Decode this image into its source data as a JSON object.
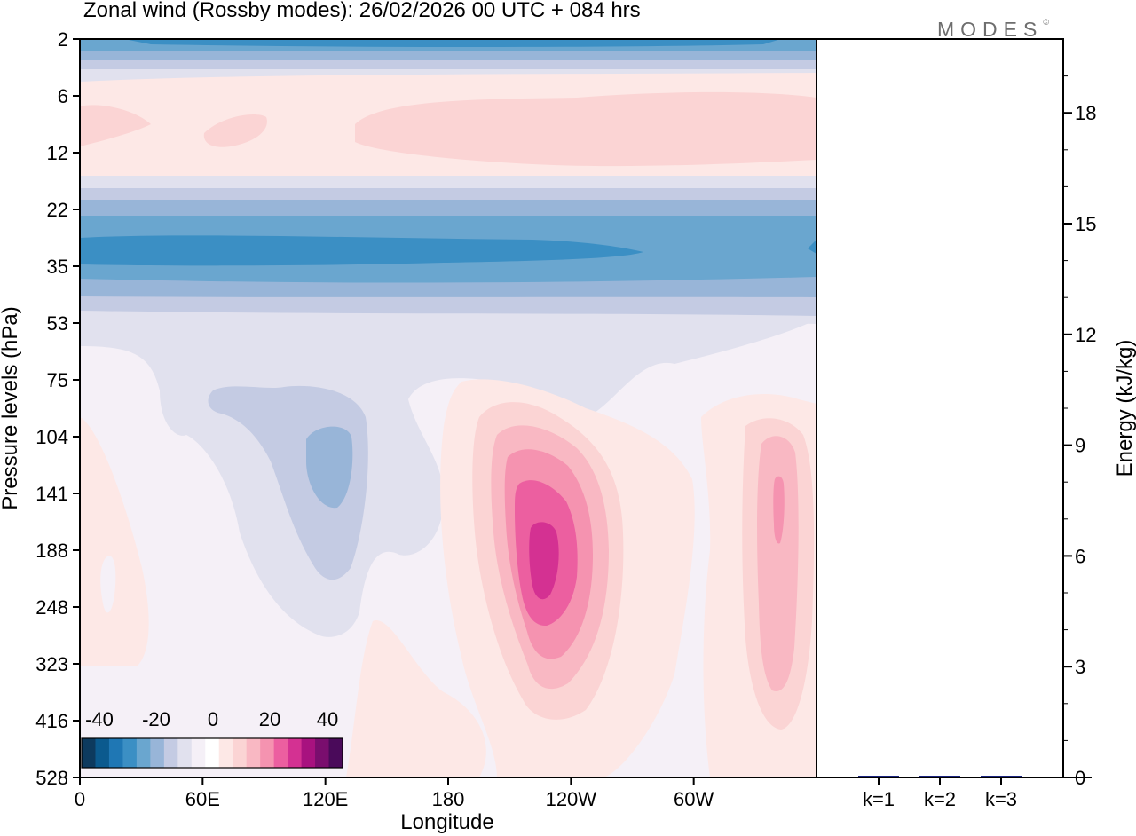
{
  "chart_data": [
    {
      "type": "heatmap",
      "title": "Zonal wind (Rossby modes):  26/02/2026  00 UTC  + 084 hrs",
      "xlabel": "Longitude",
      "ylabel": "Pressure levels (hPa)",
      "x_ticks": [
        "0",
        "60E",
        "120E",
        "180",
        "120W",
        "60W"
      ],
      "x_tick_degrees": [
        0,
        60,
        120,
        180,
        240,
        300
      ],
      "xlim_degrees": [
        0,
        360
      ],
      "y_ticks": [
        "2",
        "6",
        "12",
        "22",
        "35",
        "53",
        "75",
        "104",
        "141",
        "188",
        "248",
        "323",
        "416",
        "528"
      ],
      "colorbar": {
        "tick_labels": [
          "-40",
          "-20",
          "0",
          "20",
          "40"
        ],
        "tick_values": [
          -40,
          -20,
          0,
          20,
          40
        ],
        "range": [
          -50,
          50
        ],
        "colors": [
          "#0d3a5e",
          "#0b5a8e",
          "#1f77b4",
          "#3b8fc4",
          "#6aa6cf",
          "#98b5d8",
          "#c4cbe3",
          "#e1e1ee",
          "#f5f0f7",
          "#ffffff",
          "#fde8e6",
          "#fbd4d4",
          "#f9b8c3",
          "#f593b0",
          "#ec5fa0",
          "#d43192",
          "#a8127f",
          "#7a0e6e",
          "#4a0a5a"
        ]
      },
      "features": [
        {
          "name": "upper-stratosphere-easterlies",
          "levels_hPa": [
            2,
            4
          ],
          "value_approx": -30
        },
        {
          "name": "stratospheric-westerlies",
          "levels_hPa": [
            6,
            16
          ],
          "value_approx": 5
        },
        {
          "name": "easterly-jet-core",
          "levels_hPa": [
            22,
            53
          ],
          "value_approx": -25
        },
        {
          "name": "negative-anomaly-120E",
          "center_lon_deg": 125,
          "center_level_hPa": 130,
          "value_approx": -15
        },
        {
          "name": "positive-anomaly-120W",
          "center_lon_deg": 235,
          "center_level_hPa": 190,
          "value_approx": 30
        },
        {
          "name": "positive-anomaly-20W",
          "center_lon_deg": 340,
          "center_level_hPa": 180,
          "value_approx": 15
        }
      ]
    },
    {
      "type": "bar",
      "ylabel": "Energy (kJ/kg)",
      "categories": [
        "k=1",
        "k=2",
        "k=3"
      ],
      "values": [
        0.02,
        0.04,
        0.01
      ],
      "bar_color": "#1a237e",
      "ylim": [
        0,
        20
      ],
      "y_ticks": [
        "0",
        "3",
        "6",
        "9",
        "12",
        "15",
        "18"
      ],
      "y_tick_values": [
        0,
        3,
        6,
        9,
        12,
        15,
        18
      ]
    }
  ],
  "logo": {
    "text": "MODES",
    "mark": "©"
  }
}
